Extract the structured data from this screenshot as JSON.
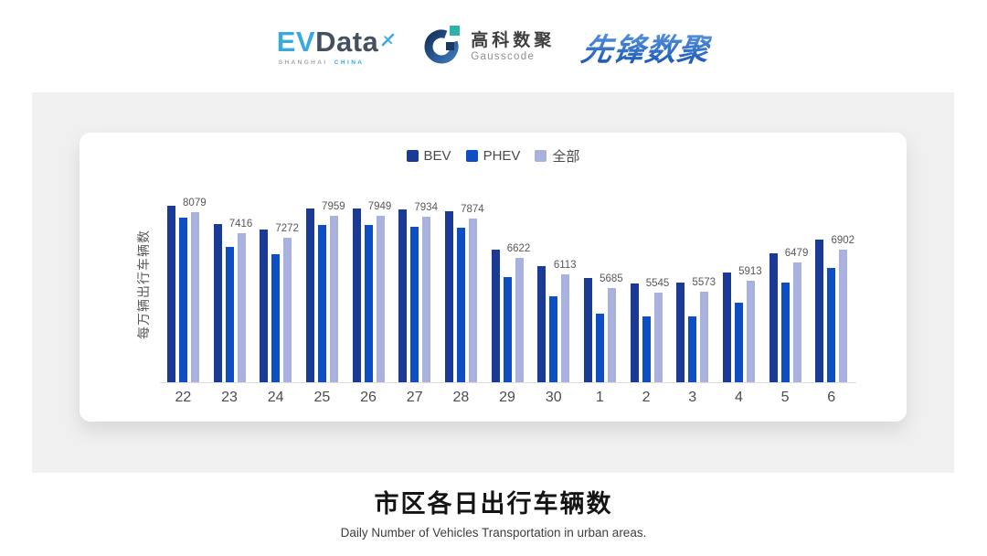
{
  "header": {
    "evdata": {
      "ev": "EV",
      "data": "Data",
      "sub_left": "SHANGHAI",
      "sub_right": "CHINA",
      "accent_color": "#3aa9e0",
      "text_color": "#43505f"
    },
    "gausscode": {
      "cn": "高科数聚",
      "en": "Gausscode",
      "ring_colors": [
        "#16325f",
        "#3a77b8"
      ],
      "teal_color": "#2fb2a8",
      "navy_color": "#1c3763"
    },
    "xianfeng": {
      "text": "先锋数聚",
      "gradient": [
        "#66a3e3",
        "#1d5abc"
      ]
    }
  },
  "chart_data": {
    "type": "bar",
    "title": "市区各日出行车辆数",
    "xlabel": "",
    "ylabel": "每万辆出行车辆数",
    "categories": [
      "22",
      "23",
      "24",
      "25",
      "26",
      "27",
      "28",
      "29",
      "30",
      "1",
      "2",
      "3",
      "4",
      "5",
      "6"
    ],
    "series": [
      {
        "key": "bev",
        "name": "BEV",
        "color": "#1a3a96",
        "values": [
          8290,
          7710,
          7530,
          8200,
          8190,
          8150,
          8100,
          6890,
          6380,
          6000,
          5810,
          5860,
          6160,
          6770,
          7220
        ]
      },
      {
        "key": "phev",
        "name": "PHEV",
        "color": "#0d4ec4",
        "values": [
          7910,
          6980,
          6750,
          7660,
          7660,
          7610,
          7580,
          6020,
          5430,
          4880,
          4770,
          4770,
          5220,
          5840,
          6320
        ]
      },
      {
        "key": "all",
        "name": "全部",
        "color": "#a9b2de",
        "values": [
          8079,
          7416,
          7272,
          7959,
          7949,
          7934,
          7874,
          6622,
          6113,
          5685,
          5545,
          5573,
          5913,
          6479,
          6902
        ]
      }
    ],
    "data_labels": [
      8079,
      7416,
      7272,
      7959,
      7949,
      7934,
      7874,
      6622,
      6113,
      5685,
      5545,
      5573,
      5913,
      6479,
      6902
    ],
    "ylim": [
      2700,
      9000
    ],
    "grid": false,
    "legend_position": "top",
    "axis_line_color": "#dedede"
  },
  "footer": {
    "title": "市区各日出行车辆数",
    "subtitle": "Daily Number of Vehicles Transportation in urban areas."
  }
}
